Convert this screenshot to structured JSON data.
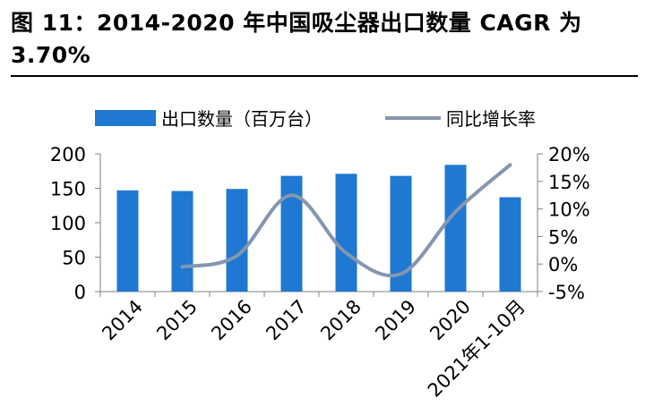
{
  "figure": {
    "title": "图 11：2014-2020 年中国吸尘器出口数量 CAGR 为 3.70%"
  },
  "chart_data": {
    "type": "bar",
    "categories": [
      "2014",
      "2015",
      "2016",
      "2017",
      "2018",
      "2019",
      "2020",
      "2021年1-10月"
    ],
    "series": [
      {
        "name": "出口数量（百万台）",
        "type": "bar",
        "axis": "left",
        "color": "#1f78d1",
        "values": [
          147,
          146,
          149,
          168,
          171,
          168,
          184,
          137
        ]
      },
      {
        "name": "同比增长率",
        "type": "line",
        "axis": "right",
        "color": "#8496b0",
        "values": [
          null,
          -0.5,
          1.5,
          12.5,
          2.0,
          -1.8,
          9.5,
          18.0
        ]
      }
    ],
    "y_left": {
      "min": 0,
      "max": 200,
      "ticks": [
        "0",
        "50",
        "100",
        "150",
        "200"
      ]
    },
    "y_right": {
      "min": -5,
      "max": 20,
      "ticks": [
        "-5%",
        "0%",
        "5%",
        "10%",
        "15%",
        "20%"
      ]
    },
    "legend_position": "top",
    "grid": false,
    "smooth_line": true
  }
}
